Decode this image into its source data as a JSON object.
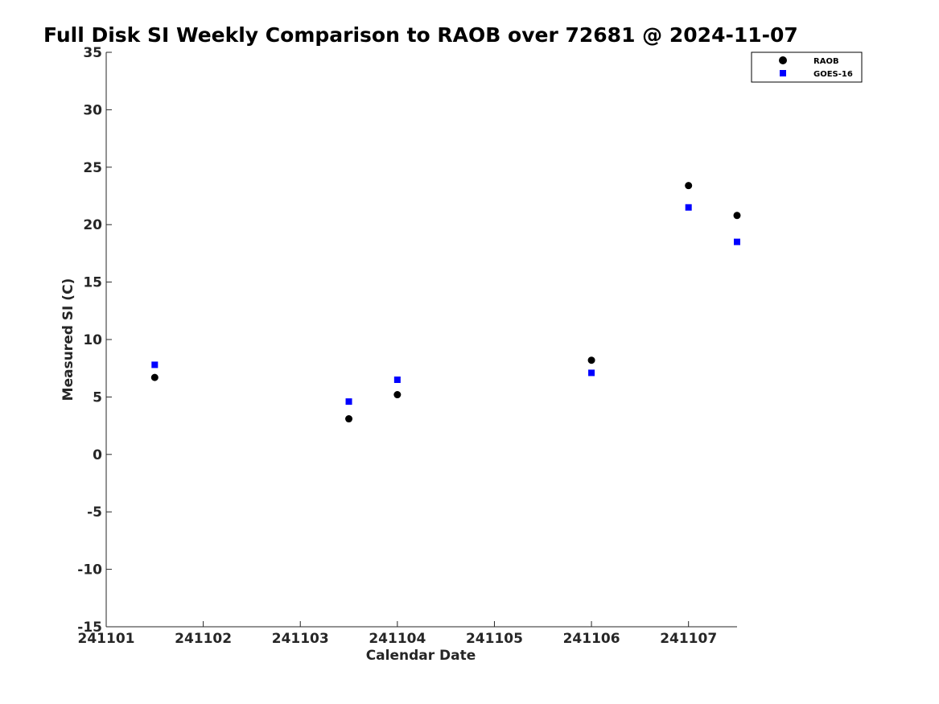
{
  "chart_data": {
    "type": "scatter",
    "title": "Full Disk SI Weekly Comparison to RAOB over 72681 @ 2024-11-07",
    "xlabel": "Calendar Date",
    "ylabel": "Measured SI (C)",
    "x_tick_labels": [
      "241101",
      "241102",
      "241103",
      "241104",
      "241105",
      "241106",
      "241107"
    ],
    "x_ticks": [
      1,
      2,
      3,
      4,
      5,
      6,
      7
    ],
    "xlim": [
      1,
      7.5
    ],
    "y_tick_labels": [
      "35",
      "30",
      "25",
      "20",
      "15",
      "10",
      "5",
      "0",
      "-5",
      "-10",
      "-15"
    ],
    "y_ticks": [
      35,
      30,
      25,
      20,
      15,
      10,
      5,
      0,
      -5,
      -10,
      -15
    ],
    "ylim": [
      -15,
      35
    ],
    "grid": false,
    "legend_position": "top-right",
    "series": [
      {
        "name": "RAOB",
        "marker": "circle",
        "color": "#000000",
        "points": [
          {
            "x": 1.5,
            "y": 6.7
          },
          {
            "x": 3.5,
            "y": 3.1
          },
          {
            "x": 4.0,
            "y": 5.2
          },
          {
            "x": 6.0,
            "y": 8.2
          },
          {
            "x": 7.0,
            "y": 23.4
          },
          {
            "x": 7.5,
            "y": 20.8
          }
        ]
      },
      {
        "name": "GOES-16",
        "marker": "square",
        "color": "#0000ff",
        "points": [
          {
            "x": 1.5,
            "y": 7.8
          },
          {
            "x": 3.5,
            "y": 4.6
          },
          {
            "x": 4.0,
            "y": 6.5
          },
          {
            "x": 6.0,
            "y": 7.1
          },
          {
            "x": 7.0,
            "y": 21.5
          },
          {
            "x": 7.5,
            "y": 18.5
          }
        ]
      }
    ]
  }
}
